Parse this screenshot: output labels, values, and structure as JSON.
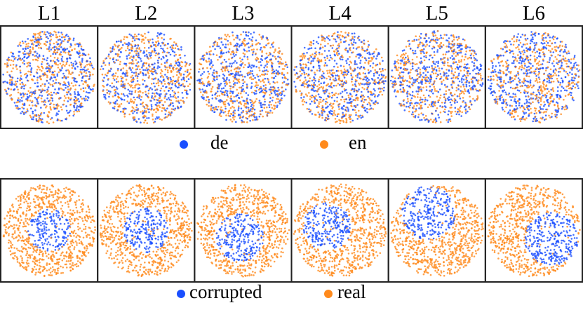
{
  "columns": [
    "L1",
    "L2",
    "L3",
    "L4",
    "L5",
    "L6"
  ],
  "legends": [
    {
      "items": [
        {
          "label": "de",
          "color": "#1a4fff"
        },
        {
          "label": "en",
          "color": "#ff8a1c"
        }
      ]
    },
    {
      "items": [
        {
          "label": "corrupted",
          "color": "#1a4fff"
        },
        {
          "label": "real",
          "color": "#ff8a1c"
        }
      ]
    }
  ]
}
